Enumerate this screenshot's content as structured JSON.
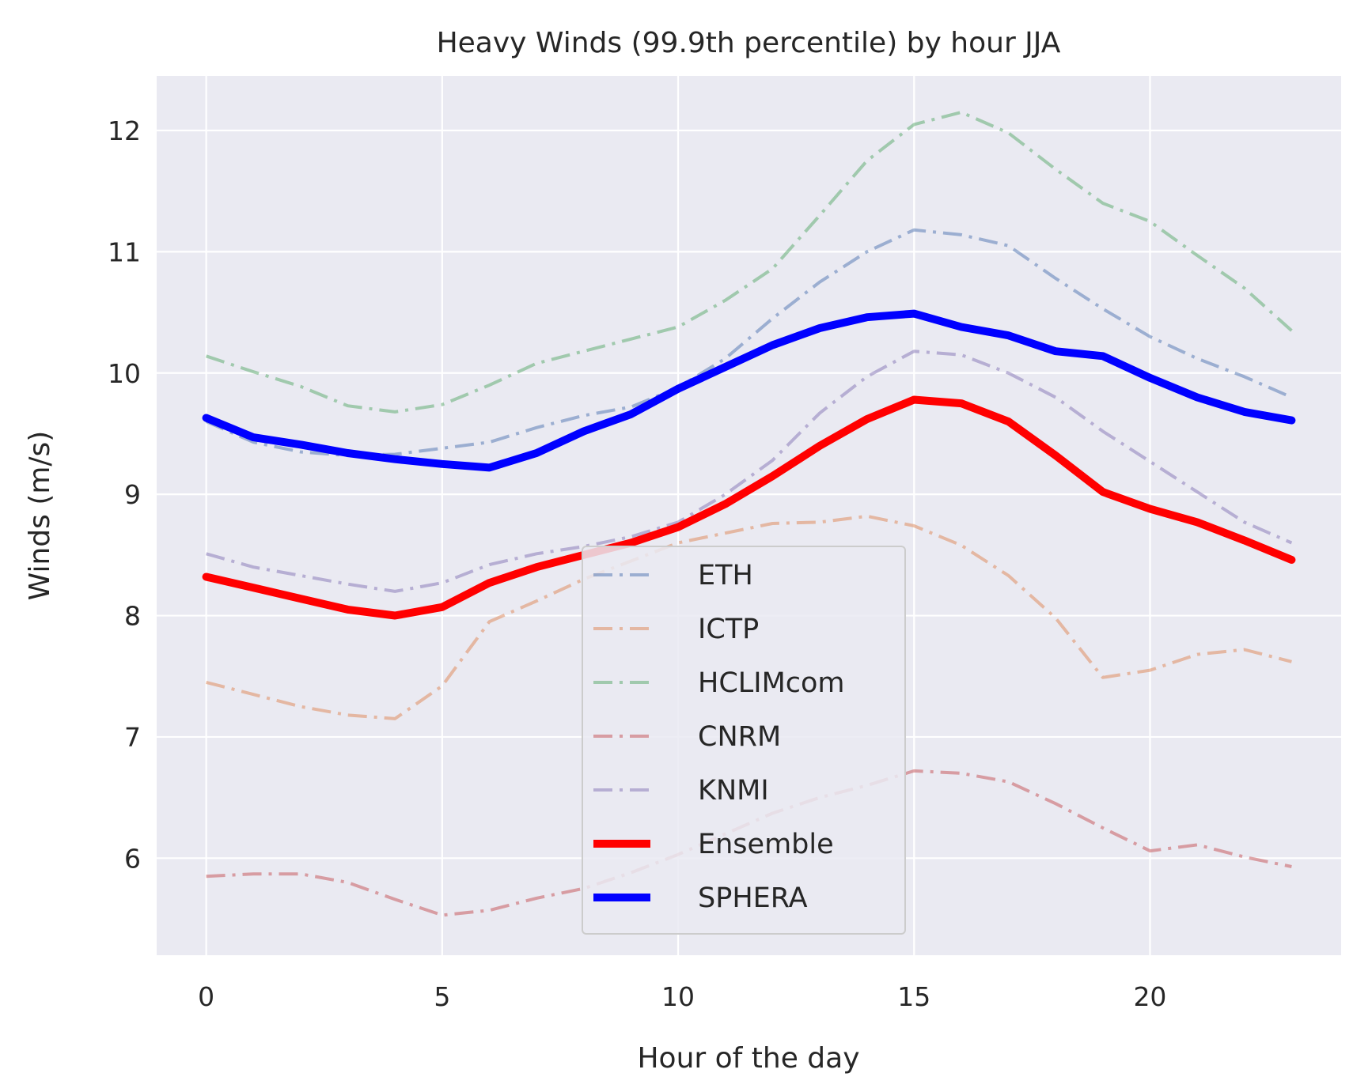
{
  "chart_data": {
    "type": "line",
    "title": "Heavy Winds (99.9th percentile) by hour JJA",
    "xlabel": "Hour of the day",
    "ylabel": "Winds (m/s)",
    "xlim": [
      -1.05,
      24.05
    ],
    "ylim": [
      5.2,
      12.45
    ],
    "xticks": [
      0,
      5,
      10,
      15,
      20
    ],
    "yticks": [
      6,
      7,
      8,
      9,
      10,
      11,
      12
    ],
    "grid": true,
    "legend_position": "lower center",
    "x": [
      0,
      1,
      2,
      3,
      4,
      5,
      6,
      7,
      8,
      9,
      10,
      11,
      12,
      13,
      14,
      15,
      16,
      17,
      18,
      19,
      20,
      21,
      22,
      23
    ],
    "series": [
      {
        "name": "ETH",
        "color": "#4c72b0",
        "style": "dashdot",
        "opacity": 0.5,
        "values": [
          9.6,
          9.43,
          9.35,
          9.32,
          9.33,
          9.38,
          9.43,
          9.55,
          9.65,
          9.72,
          9.88,
          10.12,
          10.45,
          10.75,
          11.0,
          11.18,
          11.14,
          11.05,
          10.78,
          10.53,
          10.3,
          10.12,
          9.97,
          9.8
        ]
      },
      {
        "name": "ICTP",
        "color": "#dd8452",
        "style": "dashdot",
        "opacity": 0.5,
        "values": [
          7.45,
          7.35,
          7.25,
          7.18,
          7.15,
          7.42,
          7.95,
          8.12,
          8.3,
          8.45,
          8.6,
          8.68,
          8.76,
          8.77,
          8.82,
          8.74,
          8.58,
          8.33,
          7.98,
          7.49,
          7.55,
          7.68,
          7.72,
          7.62
        ]
      },
      {
        "name": "HCLIMcom",
        "color": "#55a868",
        "style": "dashdot",
        "opacity": 0.5,
        "values": [
          10.14,
          10.01,
          9.89,
          9.73,
          9.68,
          9.74,
          9.9,
          10.08,
          10.18,
          10.28,
          10.38,
          10.6,
          10.86,
          11.3,
          11.75,
          12.05,
          12.15,
          11.98,
          11.68,
          11.4,
          11.25,
          10.97,
          10.7,
          10.35
        ]
      },
      {
        "name": "CNRM",
        "color": "#c44e52",
        "style": "dashdot",
        "opacity": 0.5,
        "values": [
          5.85,
          5.87,
          5.87,
          5.8,
          5.66,
          5.53,
          5.57,
          5.67,
          5.75,
          5.88,
          6.03,
          6.2,
          6.37,
          6.5,
          6.6,
          6.72,
          6.7,
          6.63,
          6.45,
          6.25,
          6.06,
          6.11,
          6.01,
          5.93
        ]
      },
      {
        "name": "KNMI",
        "color": "#8172b3",
        "style": "dashdot",
        "opacity": 0.5,
        "values": [
          8.51,
          8.4,
          8.33,
          8.26,
          8.2,
          8.27,
          8.42,
          8.51,
          8.57,
          8.65,
          8.77,
          9.0,
          9.28,
          9.67,
          9.97,
          10.18,
          10.15,
          10.0,
          9.8,
          9.52,
          9.27,
          9.02,
          8.77,
          8.6
        ]
      },
      {
        "name": "Ensemble",
        "color": "#ff0000",
        "style": "solid",
        "opacity": 1,
        "values": [
          8.32,
          8.23,
          8.14,
          8.05,
          8.0,
          8.07,
          8.27,
          8.4,
          8.5,
          8.6,
          8.73,
          8.92,
          9.15,
          9.4,
          9.62,
          9.78,
          9.75,
          9.6,
          9.32,
          9.02,
          8.88,
          8.77,
          8.62,
          8.46
        ]
      },
      {
        "name": "SPHERA",
        "color": "#0000ff",
        "style": "solid",
        "opacity": 1,
        "values": [
          9.63,
          9.47,
          9.41,
          9.34,
          9.29,
          9.25,
          9.22,
          9.34,
          9.52,
          9.66,
          9.87,
          10.05,
          10.23,
          10.37,
          10.46,
          10.49,
          10.38,
          10.31,
          10.18,
          10.14,
          9.96,
          9.8,
          9.68,
          9.61
        ]
      }
    ]
  }
}
